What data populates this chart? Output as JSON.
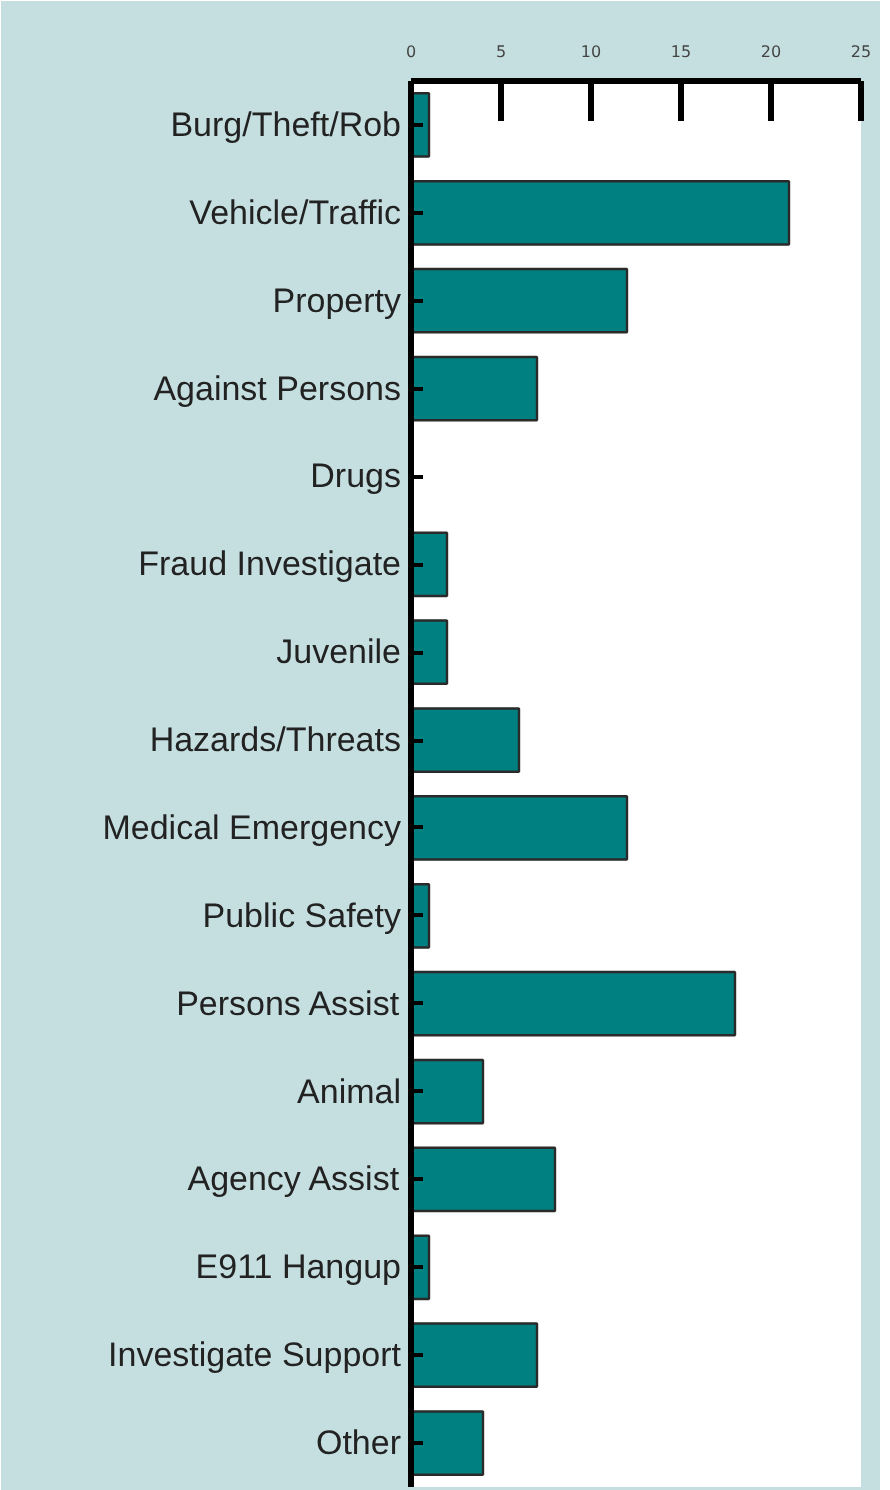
{
  "chart_data": {
    "type": "bar",
    "orientation": "horizontal",
    "categories": [
      "Burg/Theft/Rob",
      "Vehicle/Traffic",
      "Property",
      "Against Persons",
      "Drugs",
      "Fraud Investigate",
      "Juvenile",
      "Hazards/Threats",
      "Medical Emergency",
      "Public Safety",
      "Persons Assist",
      "Animal",
      "Agency Assist",
      "E911 Hangup",
      "Investigate Support",
      "Other"
    ],
    "values": [
      1,
      21,
      12,
      7,
      0,
      2,
      2,
      6,
      12,
      1,
      18,
      4,
      8,
      1,
      7,
      4
    ],
    "color": "#008080",
    "xlim": [
      0,
      25
    ],
    "xticks": [
      0,
      5,
      10,
      15,
      20,
      25
    ],
    "grid": false
  }
}
